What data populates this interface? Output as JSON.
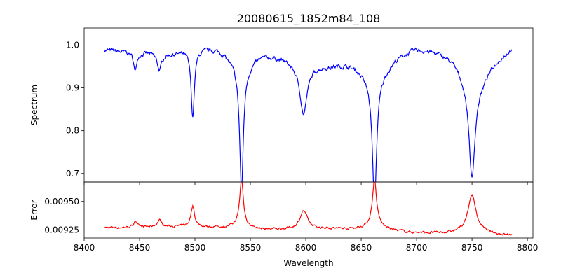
{
  "chart_data": [
    {
      "type": "line",
      "title": "20080615_1852m84_108",
      "xlabel": "",
      "ylabel": "Spectrum",
      "xlim": [
        8400,
        8805
      ],
      "ylim": [
        0.68,
        1.04
      ],
      "x_ticks": [
        8400,
        8450,
        8500,
        8550,
        8600,
        8650,
        8700,
        8750,
        8800
      ],
      "y_ticks": [
        0.7,
        0.8,
        0.9,
        1.0
      ],
      "y_tick_labels": [
        "0.7",
        "0.8",
        "0.9",
        "1.0"
      ],
      "grid": false,
      "line_color": "#0000ff",
      "x_range": [
        8418,
        8786
      ],
      "continuum": [
        [
          8418,
          0.99
        ],
        [
          8440,
          0.985
        ],
        [
          8480,
          0.985
        ],
        [
          8520,
          1.005
        ],
        [
          8560,
          0.995
        ],
        [
          8590,
          0.975
        ],
        [
          8620,
          0.965
        ],
        [
          8650,
          0.985
        ],
        [
          8700,
          1.005
        ],
        [
          8730,
          0.99
        ],
        [
          8760,
          0.96
        ],
        [
          8786,
          1.0
        ]
      ],
      "absorption_lines": [
        {
          "center": 8446,
          "depth": 0.045,
          "width": 1.5
        },
        {
          "center": 8468,
          "depth": 0.04,
          "width": 2.5
        },
        {
          "center": 8498,
          "depth": 0.155,
          "width": 1.8
        },
        {
          "center": 8542,
          "depth": 0.285,
          "width": 2.0
        },
        {
          "center": 8598,
          "depth": 0.095,
          "width": 3.5
        },
        {
          "center": 8662,
          "depth": 0.29,
          "width": 2.2
        },
        {
          "center": 8750,
          "depth": 0.21,
          "width": 3.0
        }
      ],
      "broad_wings": [
        {
          "center": 8542,
          "depth": 0.1,
          "width": 14
        },
        {
          "center": 8662,
          "depth": 0.14,
          "width": 16
        },
        {
          "center": 8750,
          "depth": 0.14,
          "width": 12
        },
        {
          "center": 8598,
          "depth": 0.06,
          "width": 9
        }
      ],
      "noise_amplitude": 0.006
    },
    {
      "type": "line",
      "title": "",
      "xlabel": "Wavelength",
      "ylabel": "Error",
      "xlim": [
        8400,
        8805
      ],
      "ylim": [
        0.00918,
        0.00967
      ],
      "x_ticks": [
        8400,
        8450,
        8500,
        8550,
        8600,
        8650,
        8700,
        8750,
        8800
      ],
      "x_tick_labels": [
        "8400",
        "8450",
        "8500",
        "8550",
        "8600",
        "8650",
        "8700",
        "8750",
        "8800"
      ],
      "y_ticks": [
        0.00925,
        0.0095
      ],
      "y_tick_labels": [
        "0.00925",
        "0.00950"
      ],
      "grid": false,
      "line_color": "#ff0000",
      "x_range": [
        8418,
        8786
      ],
      "baseline": [
        [
          8418,
          0.00927
        ],
        [
          8500,
          0.00928
        ],
        [
          8560,
          0.00925
        ],
        [
          8620,
          0.00926
        ],
        [
          8700,
          0.00922
        ],
        [
          8786,
          0.0092
        ]
      ],
      "peaks": [
        {
          "center": 8446,
          "height": 6e-05,
          "width": 1.5
        },
        {
          "center": 8468,
          "height": 6e-05,
          "width": 2.5
        },
        {
          "center": 8498,
          "height": 0.00018,
          "width": 2.0
        },
        {
          "center": 8542,
          "height": 0.0004,
          "width": 2.0
        },
        {
          "center": 8598,
          "height": 0.00016,
          "width": 4.0
        },
        {
          "center": 8662,
          "height": 0.0004,
          "width": 2.2
        },
        {
          "center": 8750,
          "height": 0.0003,
          "width": 4.0
        }
      ],
      "peak_wings": [
        {
          "center": 8542,
          "height": 6e-05,
          "width": 10
        },
        {
          "center": 8662,
          "height": 0.0001,
          "width": 12
        },
        {
          "center": 8750,
          "height": 0.0001,
          "width": 11
        }
      ],
      "noise_amplitude": 1.2e-05
    }
  ]
}
